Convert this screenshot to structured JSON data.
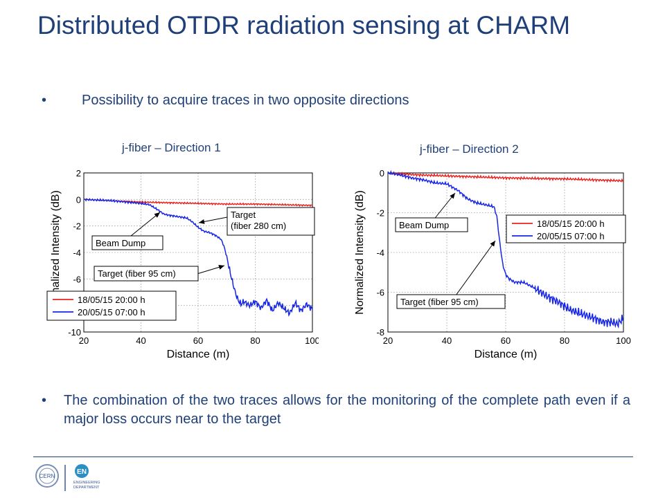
{
  "slide": {
    "title": "Distributed OTDR radiation sensing at CHARM",
    "bullet_mark": "•",
    "bullet1": "Possibility to acquire traces in two opposite directions",
    "bullet2": "The combination of the two traces allows for the monitoring of the complete path even if a major loss occurs near to the target"
  },
  "footer": {
    "cern_logo_text": "CERN",
    "en_logo_text": "EN",
    "en_dept_line1": "ENGINEERING",
    "en_dept_line2": "DEPARTMENT"
  },
  "colors": {
    "title": "#1f3f78",
    "red_series": "#e8231f",
    "blue_series": "#1524e6"
  },
  "chart_data": [
    {
      "type": "line",
      "title": "j-fiber – Direction 1",
      "xlabel": "Distance (m)",
      "ylabel": "Normalized Intensity (dB)",
      "xlim": [
        20,
        100
      ],
      "ylim": [
        -10,
        2
      ],
      "xticks": [
        "20",
        "40",
        "60",
        "80",
        "100"
      ],
      "yticks": [
        "2",
        "0",
        "-2",
        "-4",
        "-6",
        "-8",
        "-10"
      ],
      "grid": true,
      "legend": "bottom-left",
      "series": [
        {
          "name": "18/05/15 20:00 h",
          "color": "#e8231f",
          "x": [
            20,
            30,
            40,
            50,
            60,
            70,
            80,
            90,
            100
          ],
          "y": [
            0.0,
            -0.1,
            -0.2,
            -0.25,
            -0.3,
            -0.35,
            -0.35,
            -0.4,
            -0.45
          ]
        },
        {
          "name": "20/05/15 07:00 h",
          "color": "#1524e6",
          "x": [
            20,
            25,
            30,
            35,
            40,
            43,
            46,
            48,
            50,
            53,
            56,
            58,
            60,
            62,
            64,
            66,
            68,
            69,
            70,
            71,
            72,
            73,
            74,
            75,
            76,
            78,
            80,
            82,
            84,
            86,
            88,
            90,
            92,
            94,
            96,
            98,
            100
          ],
          "y": [
            0.0,
            -0.05,
            -0.1,
            -0.2,
            -0.3,
            -0.4,
            -0.8,
            -1.1,
            -1.2,
            -1.3,
            -1.4,
            -1.7,
            -2.1,
            -2.4,
            -2.5,
            -2.7,
            -3.0,
            -3.5,
            -4.3,
            -5.3,
            -6.2,
            -7.0,
            -7.6,
            -7.9,
            -7.7,
            -8.0,
            -7.7,
            -8.2,
            -7.6,
            -8.4,
            -7.8,
            -8.2,
            -8.6,
            -7.8,
            -8.4,
            -7.9,
            -8.3
          ]
        }
      ],
      "annotations": [
        {
          "text": "Beam Dump",
          "x": 46,
          "y": -1.0
        },
        {
          "text": "Target\n(fiber 280 cm)",
          "x": 59,
          "y": -1.8
        },
        {
          "text": "Target (fiber 95 cm)",
          "x": 72,
          "y": -5.0
        }
      ]
    },
    {
      "type": "line",
      "title": "j-fiber – Direction 2",
      "xlabel": "Distance (m)",
      "ylabel": "Normalized Intensity (dB)",
      "xlim": [
        20,
        100
      ],
      "ylim": [
        -8,
        0
      ],
      "xticks": [
        "20",
        "40",
        "60",
        "80",
        "100"
      ],
      "yticks": [
        "0",
        "-2",
        "-4",
        "-6",
        "-8"
      ],
      "grid": true,
      "legend": "center-right",
      "series": [
        {
          "name": "18/05/15 20:00 h",
          "color": "#e8231f",
          "x": [
            20,
            30,
            40,
            50,
            60,
            70,
            80,
            90,
            100
          ],
          "y": [
            0.0,
            -0.1,
            -0.15,
            -0.2,
            -0.25,
            -0.28,
            -0.3,
            -0.35,
            -0.4
          ]
        },
        {
          "name": "20/05/15 07:00 h",
          "color": "#1524e6",
          "x": [
            20,
            24,
            28,
            32,
            36,
            40,
            44,
            47,
            50,
            53,
            56,
            57,
            58,
            59,
            60,
            61,
            63,
            66,
            70,
            74,
            78,
            82,
            86,
            90,
            93,
            96,
            98,
            100
          ],
          "y": [
            0.0,
            -0.1,
            -0.25,
            -0.35,
            -0.5,
            -0.55,
            -0.9,
            -1.3,
            -1.5,
            -1.6,
            -1.7,
            -2.2,
            -3.5,
            -4.6,
            -5.1,
            -5.3,
            -5.5,
            -5.5,
            -5.8,
            -6.2,
            -6.5,
            -6.9,
            -7.1,
            -7.3,
            -7.5,
            -7.5,
            -7.6,
            -7.3
          ]
        }
      ],
      "annotations": [
        {
          "text": "Beam Dump",
          "x": 45,
          "y": -0.8
        },
        {
          "text": "Target (fiber 95 cm)",
          "x": 59,
          "y": -2.7
        }
      ]
    }
  ]
}
